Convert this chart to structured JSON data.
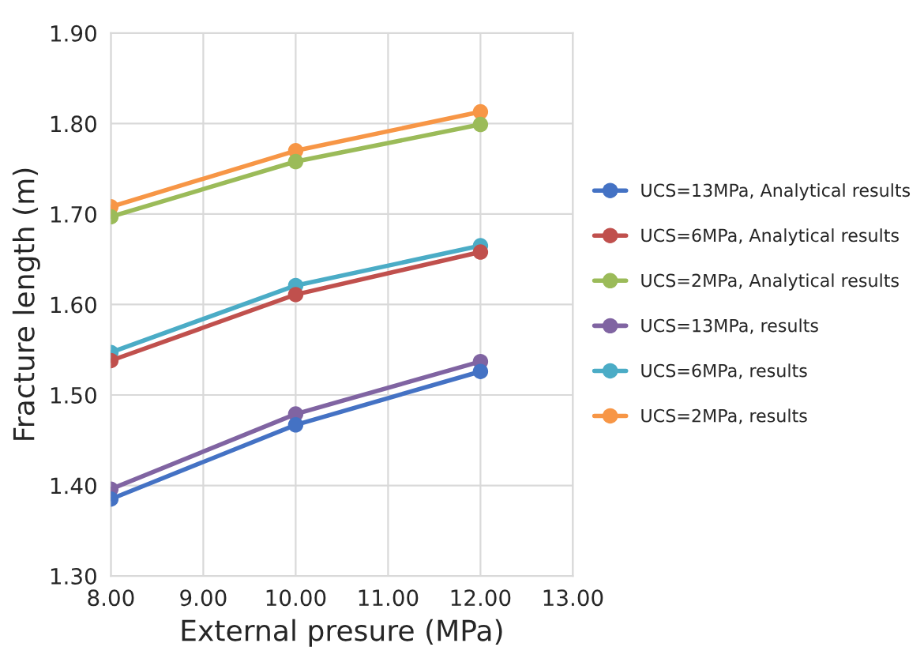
{
  "chart_data": {
    "type": "line",
    "xlabel": "External presure (MPa)",
    "ylabel": "Fracture length (m)",
    "x": [
      8,
      10,
      12
    ],
    "series": [
      {
        "name": "UCS=13MPa, Analytical results",
        "color": "#4472c4",
        "values": [
          1.385,
          1.467,
          1.526
        ]
      },
      {
        "name": "UCS=6MPa, Analytical results",
        "color": "#c0504d",
        "values": [
          1.538,
          1.611,
          1.658
        ]
      },
      {
        "name": "UCS=2MPa, Analytical results",
        "color": "#9bbb59",
        "values": [
          1.697,
          1.758,
          1.799
        ]
      },
      {
        "name": "UCS=13MPa, results",
        "color": "#8064a2",
        "values": [
          1.396,
          1.479,
          1.537
        ]
      },
      {
        "name": "UCS=6MPa, results",
        "color": "#4bacc6",
        "values": [
          1.547,
          1.621,
          1.665
        ]
      },
      {
        "name": "UCS=2MPa, results",
        "color": "#f79646",
        "values": [
          1.708,
          1.77,
          1.813
        ]
      }
    ],
    "xlim": [
      8,
      13
    ],
    "xticks": [
      {
        "value": 8,
        "label": "8.00"
      },
      {
        "value": 9,
        "label": "9.00"
      },
      {
        "value": 10,
        "label": "10.00"
      },
      {
        "value": 11,
        "label": "11.00"
      },
      {
        "value": 12,
        "label": "12.00"
      },
      {
        "value": 13,
        "label": "13.00"
      }
    ],
    "ylim": [
      1.3,
      1.9
    ],
    "yticks": [
      {
        "value": 1.3,
        "label": "1.30"
      },
      {
        "value": 1.4,
        "label": "1.40"
      },
      {
        "value": 1.5,
        "label": "1.50"
      },
      {
        "value": 1.6,
        "label": "1.60"
      },
      {
        "value": 1.7,
        "label": "1.70"
      },
      {
        "value": 1.8,
        "label": "1.80"
      },
      {
        "value": 1.9,
        "label": "1.90"
      }
    ],
    "grid": true,
    "legend": "right",
    "marker": "circle",
    "line_style": "solid"
  }
}
